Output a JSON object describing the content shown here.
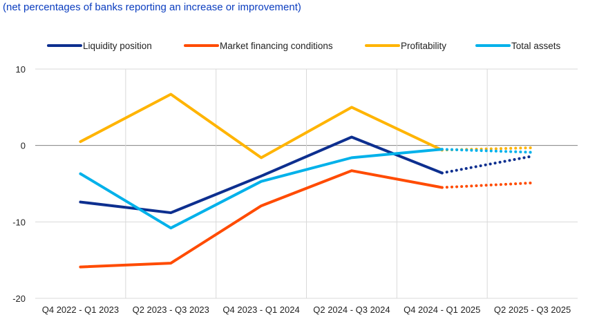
{
  "subtitle": "(net percentages of banks reporting an increase or improvement)",
  "chart_data": {
    "type": "line",
    "categories": [
      "Q4 2022 - Q1 2023",
      "Q2 2023 - Q3 2023",
      "Q4 2023 - Q1 2024",
      "Q2 2024 - Q3 2024",
      "Q4 2024 - Q1 2025",
      "Q2 2025 - Q3 2025"
    ],
    "ylim": [
      -20,
      10
    ],
    "yticks": [
      10,
      0,
      -10,
      -20
    ],
    "grid": true,
    "legend_position": "top",
    "series": [
      {
        "name": "Liquidity position",
        "color": "#0d2f8f",
        "values": [
          -7.4,
          -8.8,
          -4.0,
          1.1,
          -3.6,
          -1.4
        ],
        "dotted_from": 4
      },
      {
        "name": "Market financing conditions",
        "color": "#ff4b00",
        "values": [
          -15.9,
          -15.4,
          -7.9,
          -3.3,
          -5.5,
          -4.9
        ],
        "dotted_from": 4
      },
      {
        "name": "Profitability",
        "color": "#ffb400",
        "values": [
          0.5,
          6.7,
          -1.6,
          5.0,
          -0.6,
          -0.3
        ],
        "dotted_from": 4
      },
      {
        "name": "Total assets",
        "color": "#00b1ea",
        "values": [
          -3.7,
          -10.8,
          -4.7,
          -1.6,
          -0.5,
          -0.9
        ],
        "dotted_from": 4
      }
    ]
  }
}
